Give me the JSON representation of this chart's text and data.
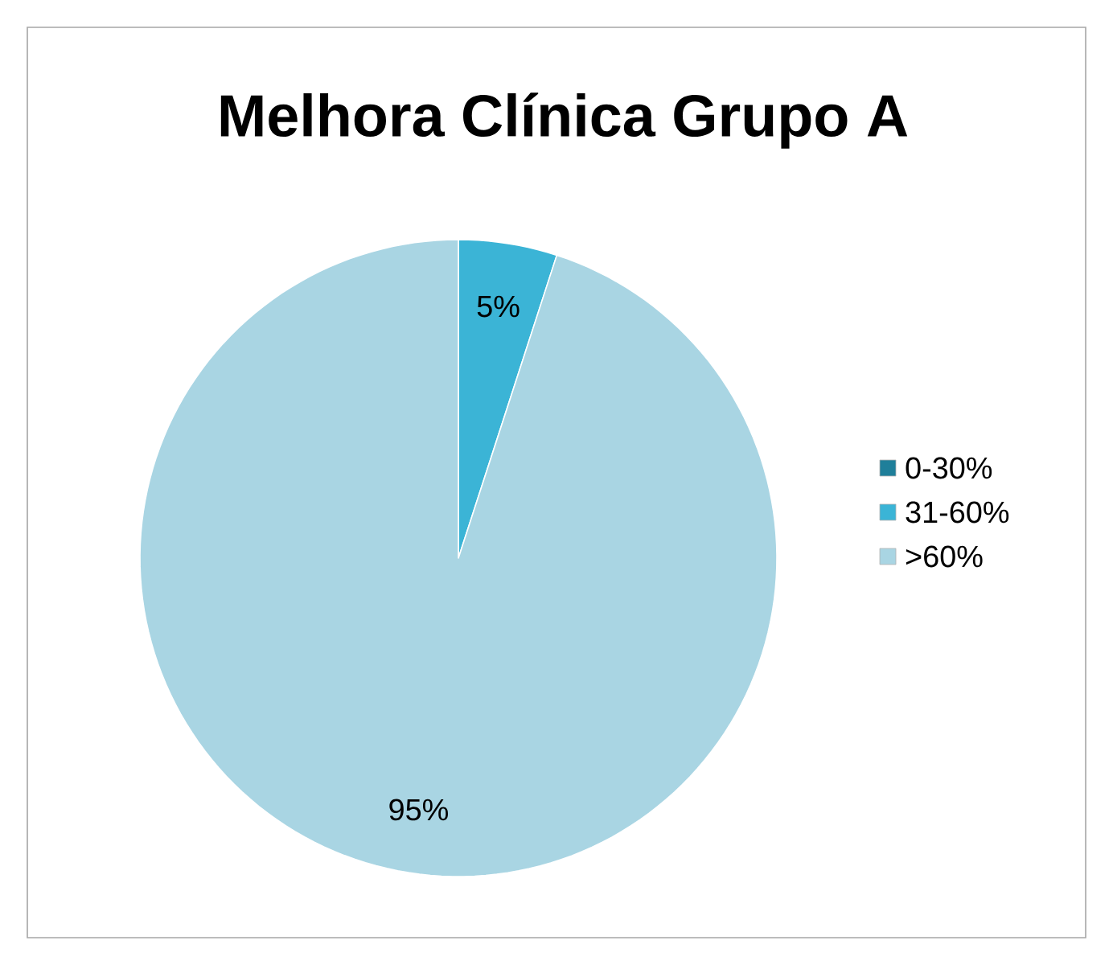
{
  "chart_data": {
    "type": "pie",
    "title": "Melhora Clínica Grupo A",
    "categories": [
      "0-30%",
      "31-60%",
      ">60%"
    ],
    "values": [
      0,
      5,
      95
    ],
    "colors": [
      "#1f7f9a",
      "#3bb4d6",
      "#a9d5e3"
    ],
    "value_labels": [
      null,
      "5%",
      "95%"
    ],
    "legend": "right"
  }
}
